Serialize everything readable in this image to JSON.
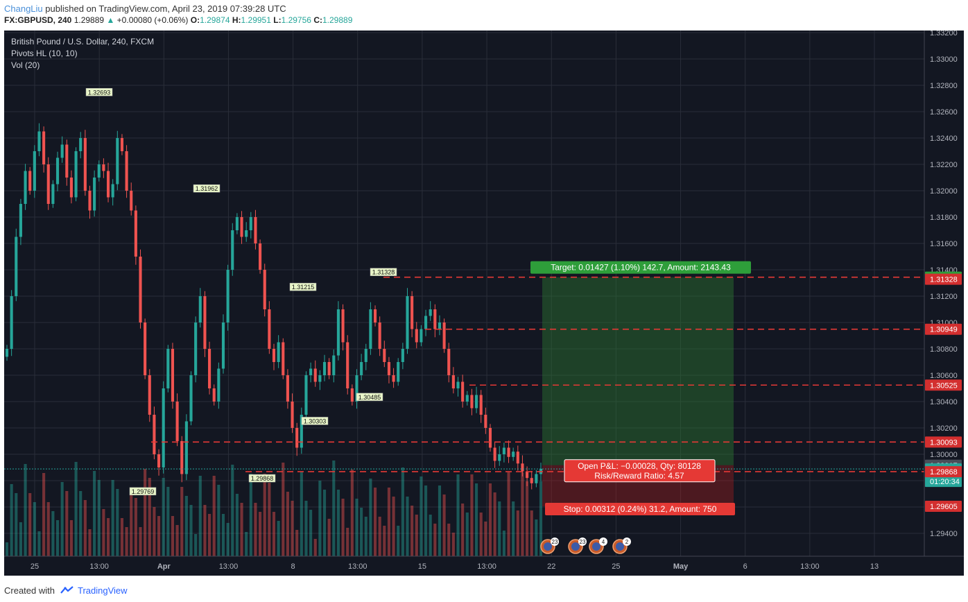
{
  "header": {
    "author": "ChangLiu",
    "published_text": " published on TradingView.com, April 23, 2019 07:39:28 UTC",
    "symbol": "FX:GBPUSD, 240",
    "last": "1.29889",
    "change": "+0.00080 (+0.06%)",
    "o_label": "O:",
    "o": "1.29874",
    "h_label": "H:",
    "h": "1.29951",
    "l_label": "L:",
    "l": "1.29756",
    "c_label": "C:",
    "c": "1.29889"
  },
  "legend": {
    "title": "British Pound / U.S. Dollar, 240, FXCM",
    "ind1": "Pivots HL (10, 10)",
    "ind2": "Vol (20)"
  },
  "footer": {
    "created": "Created with",
    "brand": "TradingView"
  },
  "colors": {
    "bg": "#131722",
    "up": "#26a69a",
    "down": "#ef5350",
    "target_zone": "#1b5e20",
    "stop_zone": "#5c1a1a",
    "level": "#e53935"
  },
  "chart_data": {
    "type": "candlestick",
    "symbol": "GBPUSD",
    "ylim": [
      1.293,
      1.332
    ],
    "y_ticks": [
      "1.33200",
      "1.33000",
      "1.32800",
      "1.32600",
      "1.32400",
      "1.32200",
      "1.32000",
      "1.31800",
      "1.31600",
      "1.31400",
      "1.31200",
      "1.31000",
      "1.30800",
      "1.30600",
      "1.30400",
      "1.30200",
      "1.30000",
      "1.29800",
      "1.29600",
      "1.29400"
    ],
    "x_ticks": [
      "25",
      "13:00",
      "Apr",
      "13:00",
      "8",
      "13:00",
      "15",
      "13:00",
      "22",
      "25",
      "May",
      "6",
      "13:00",
      "13"
    ],
    "pivot_labels": [
      {
        "text": "1.32693",
        "value": 1.32693,
        "type": "high"
      },
      {
        "text": "1.31962",
        "value": 1.31962,
        "type": "high"
      },
      {
        "text": "1.31215",
        "value": 1.31215,
        "type": "high"
      },
      {
        "text": "1.31328",
        "value": 1.31328,
        "type": "high"
      },
      {
        "text": "1.30485",
        "value": 1.30485,
        "type": "low"
      },
      {
        "text": "1.30303",
        "value": 1.30303,
        "type": "low"
      },
      {
        "text": "1.29868",
        "value": 1.29868,
        "type": "low"
      },
      {
        "text": "1.29769",
        "value": 1.29769,
        "type": "low"
      }
    ],
    "levels": [
      {
        "text": "1.31344",
        "value": 1.31344,
        "kind": "target"
      },
      {
        "text": "1.31328",
        "value": 1.31328,
        "kind": "pivot"
      },
      {
        "text": "1.30949",
        "value": 1.30949,
        "kind": "level"
      },
      {
        "text": "1.30525",
        "value": 1.30525,
        "kind": "level"
      },
      {
        "text": "1.30093",
        "value": 1.30093,
        "kind": "level"
      },
      {
        "text": "1.29917",
        "value": 1.29917,
        "kind": "entry"
      },
      {
        "text": "1.29889",
        "value": 1.29889,
        "kind": "last"
      },
      {
        "text": "01:20:34",
        "kind": "countdown"
      },
      {
        "text": "1.29868",
        "value": 1.29868,
        "kind": "pivot"
      },
      {
        "text": "1.29605",
        "value": 1.29605,
        "kind": "stop"
      }
    ],
    "position": {
      "target_label": "Target: 0.01427 (1.10%) 142.7, Amount: 2143.43",
      "stop_label": "Stop: 0.00312 (0.24%) 31.2, Amount: 750",
      "pnl_label": "Open P&L: −0.00028, Qty: 80128",
      "rr_label": "Risk/Reward Ratio: 4.57"
    },
    "event_badges": [
      "23",
      "23",
      "4",
      "2"
    ],
    "series": [
      {
        "name": "close",
        "values": [
          1.308,
          1.312,
          1.3165,
          1.319,
          1.3215,
          1.32,
          1.323,
          1.3245,
          1.322,
          1.319,
          1.3205,
          1.3225,
          1.3235,
          1.321,
          1.3195,
          1.323,
          1.324,
          1.32,
          1.3185,
          1.321,
          1.322,
          1.3215,
          1.3195,
          1.3205,
          1.324,
          1.323,
          1.32,
          1.3185,
          1.315,
          1.31,
          1.306,
          1.303,
          1.3,
          1.299,
          1.305,
          1.308,
          1.304,
          1.301,
          1.2985,
          1.3025,
          1.306,
          1.31,
          1.312,
          1.308,
          1.305,
          1.304,
          1.3065,
          1.31,
          1.314,
          1.317,
          1.318,
          1.3165,
          1.317,
          1.318,
          1.316,
          1.314,
          1.311,
          1.308,
          1.307,
          1.3085,
          1.306,
          1.304,
          1.302,
          1.3005,
          1.303,
          1.306,
          1.3065,
          1.3055,
          1.306,
          1.307,
          1.306,
          1.3075,
          1.311,
          1.3085,
          1.305,
          1.304,
          1.306,
          1.307,
          1.308,
          1.311,
          1.31,
          1.308,
          1.307,
          1.306,
          1.3055,
          1.307,
          1.308,
          1.312,
          1.3095,
          1.3085,
          1.3095,
          1.3105,
          1.311,
          1.3095,
          1.31,
          1.308,
          1.306,
          1.305,
          1.3055,
          1.304,
          1.3045,
          1.3035,
          1.3045,
          1.303,
          1.302,
          1.3005,
          1.2995,
          1.3,
          1.3005,
          1.2998,
          1.3002,
          1.2993,
          1.2987,
          1.2982,
          1.2978,
          1.2985,
          1.2989
        ]
      }
    ]
  }
}
